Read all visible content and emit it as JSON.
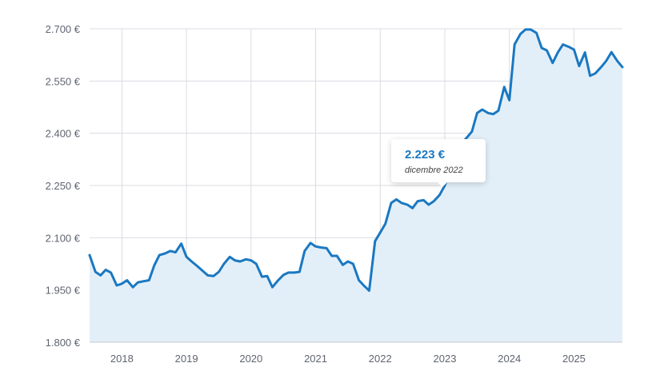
{
  "chart_data": {
    "type": "area",
    "title": "",
    "xlabel": "",
    "ylabel": "",
    "ylim": [
      1800,
      2700
    ],
    "yticks": [
      {
        "value": 1800,
        "label": "1.800 €"
      },
      {
        "value": 1950,
        "label": "1.950 €"
      },
      {
        "value": 2100,
        "label": "2.100 €"
      },
      {
        "value": 2250,
        "label": "2.250 €"
      },
      {
        "value": 2400,
        "label": "2.400 €"
      },
      {
        "value": 2550,
        "label": "2.550 €"
      },
      {
        "value": 2700,
        "label": "2.700 €"
      }
    ],
    "xlim": [
      2017.5,
      2025.75
    ],
    "xticks": [
      {
        "value": 2018,
        "label": "2018"
      },
      {
        "value": 2019,
        "label": "2019"
      },
      {
        "value": 2020,
        "label": "2020"
      },
      {
        "value": 2021,
        "label": "2021"
      },
      {
        "value": 2022,
        "label": "2022"
      },
      {
        "value": 2023,
        "label": "2023"
      },
      {
        "value": 2024,
        "label": "2024"
      },
      {
        "value": 2025,
        "label": "2025"
      }
    ],
    "grid": true,
    "colors": {
      "line": "#1a78c2",
      "fill": "#e3eff8",
      "grid": "#d9dce1"
    },
    "x": [
      2017.5,
      2017.59,
      2017.67,
      2017.75,
      2017.83,
      2017.92,
      2018.0,
      2018.08,
      2018.17,
      2018.25,
      2018.33,
      2018.42,
      2018.5,
      2018.58,
      2018.67,
      2018.75,
      2018.83,
      2018.92,
      2019.0,
      2019.08,
      2019.17,
      2019.25,
      2019.33,
      2019.42,
      2019.5,
      2019.58,
      2019.67,
      2019.75,
      2019.83,
      2019.92,
      2020.0,
      2020.08,
      2020.17,
      2020.25,
      2020.33,
      2020.42,
      2020.5,
      2020.58,
      2020.67,
      2020.75,
      2020.83,
      2020.92,
      2021.0,
      2021.08,
      2021.17,
      2021.25,
      2021.33,
      2021.42,
      2021.5,
      2021.58,
      2021.67,
      2021.75,
      2021.83,
      2021.92,
      2022.0,
      2022.08,
      2022.17,
      2022.25,
      2022.33,
      2022.42,
      2022.5,
      2022.58,
      2022.67,
      2022.75,
      2022.83,
      2022.92,
      2023.0,
      2023.08,
      2023.17,
      2023.25,
      2023.33,
      2023.42,
      2023.5,
      2023.58,
      2023.67,
      2023.75,
      2023.83,
      2023.92,
      2024.0,
      2024.08,
      2024.17,
      2024.25,
      2024.33,
      2024.42,
      2024.5,
      2024.58,
      2024.67,
      2024.75,
      2024.83,
      2024.92,
      2025.0,
      2025.08,
      2025.17,
      2025.25,
      2025.33,
      2025.42,
      2025.5,
      2025.58,
      2025.67,
      2025.75
    ],
    "values": [
      2050,
      2002,
      1992,
      2008,
      2000,
      1963,
      1968,
      1978,
      1958,
      1972,
      1975,
      1978,
      2020,
      2050,
      2055,
      2062,
      2058,
      2083,
      2045,
      2032,
      2018,
      2005,
      1992,
      1990,
      2002,
      2025,
      2045,
      2035,
      2032,
      2038,
      2035,
      2025,
      1988,
      1990,
      1958,
      1978,
      1993,
      2000,
      2000,
      2002,
      2062,
      2085,
      2075,
      2072,
      2070,
      2048,
      2048,
      2022,
      2032,
      2025,
      1978,
      1962,
      1948,
      2090,
      2115,
      2140,
      2200,
      2210,
      2200,
      2195,
      2185,
      2205,
      2208,
      2195,
      2205,
      2223,
      2250,
      2290,
      2330,
      2370,
      2385,
      2405,
      2458,
      2468,
      2458,
      2455,
      2465,
      2533,
      2495,
      2655,
      2685,
      2698,
      2698,
      2688,
      2645,
      2638,
      2602,
      2632,
      2655,
      2648,
      2640,
      2593,
      2632,
      2565,
      2572,
      2590,
      2608,
      2633,
      2608,
      2590
    ],
    "tooltip": {
      "value": "2.223 €",
      "date": "dicembre 2022"
    }
  }
}
